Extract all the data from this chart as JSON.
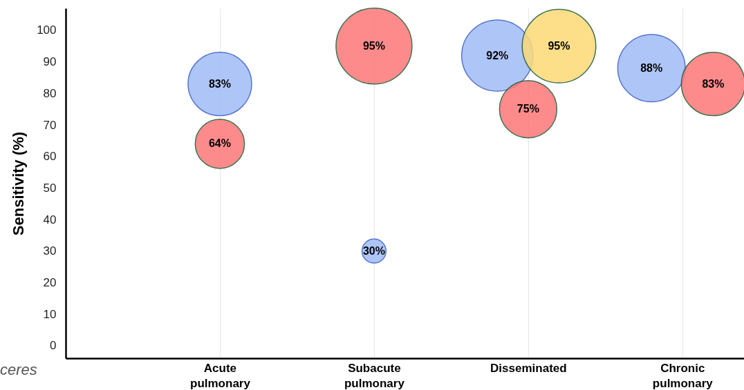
{
  "chart_data": {
    "type": "bubble",
    "ylabel": "Sensitivity (%)",
    "categories": [
      "Acute pulmonary",
      "Subacute pulmonary",
      "Disseminated",
      "Chronic pulmonary"
    ],
    "ylim": [
      -4,
      107
    ],
    "yticks": [
      0,
      10,
      20,
      30,
      40,
      50,
      60,
      70,
      80,
      90,
      100
    ],
    "grid": "x",
    "series": [
      {
        "color": "#a0bcf7",
        "values": [
          83,
          30,
          92,
          88
        ],
        "sizes": [
          0.7,
          0.1,
          0.88,
          0.79
        ],
        "value_labels": [
          "83%",
          "30%",
          "92%",
          "88%"
        ]
      },
      {
        "color": "#fe7777",
        "values": [
          64,
          95,
          75,
          83
        ],
        "sizes": [
          0.42,
          1,
          0.57,
          0.7
        ],
        "value_labels": [
          "64%",
          "95%",
          "75%",
          "83%"
        ]
      },
      {
        "color": "#fdda76",
        "x": [
          "Disseminated"
        ],
        "values": [
          95
        ],
        "sizes": [
          0.94
        ],
        "value_labels": [
          "95%"
        ]
      }
    ],
    "annotations": [
      "ceres"
    ]
  }
}
